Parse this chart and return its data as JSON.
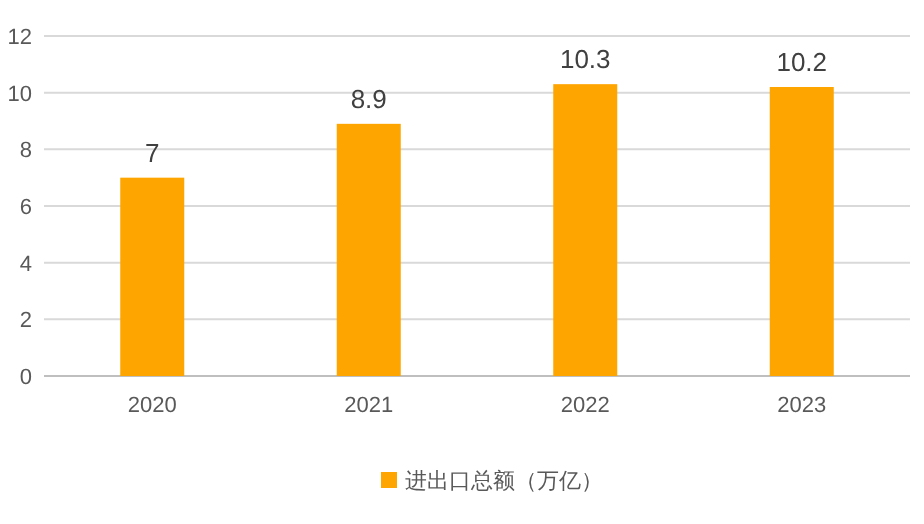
{
  "chart_data": {
    "type": "bar",
    "categories": [
      "2020",
      "2021",
      "2022",
      "2023"
    ],
    "series": [
      {
        "name": "进出口总额（万亿）",
        "color": "#ffa500",
        "values": [
          7,
          8.9,
          10.3,
          10.2
        ]
      }
    ],
    "ylim": [
      0,
      12
    ],
    "yticks": [
      0,
      2,
      4,
      6,
      8,
      10,
      12
    ],
    "grid": "y",
    "data_labels": true,
    "legend": "bottom"
  }
}
